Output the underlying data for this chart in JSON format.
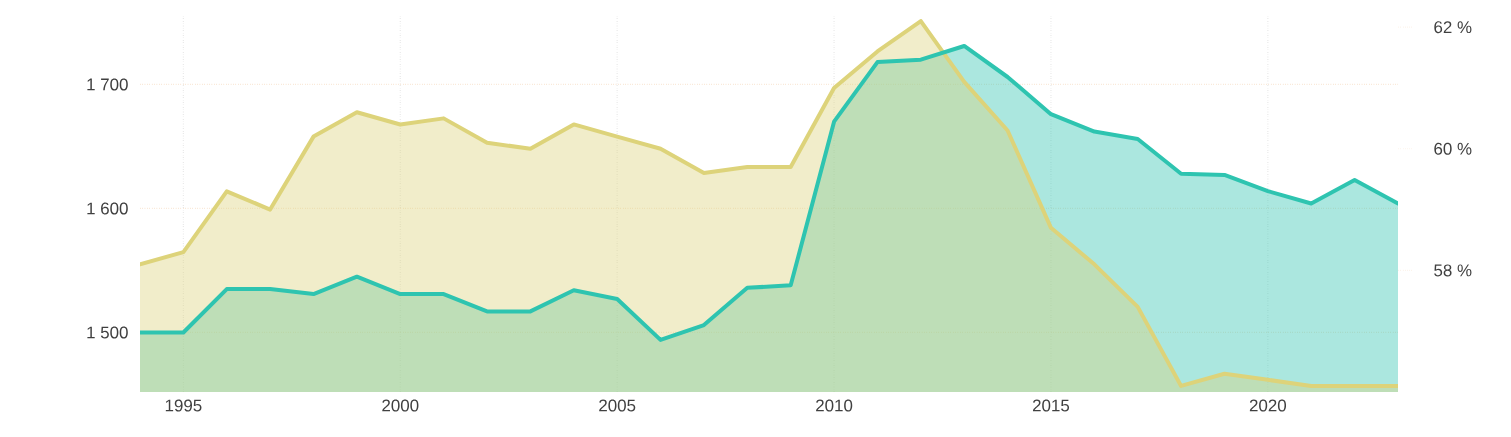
{
  "chart_data": {
    "type": "area",
    "x": [
      1994,
      1995,
      1996,
      1997,
      1998,
      1999,
      2000,
      2001,
      2002,
      2003,
      2004,
      2005,
      2006,
      2007,
      2008,
      2009,
      2010,
      2011,
      2012,
      2013,
      2014,
      2015,
      2016,
      2017,
      2018,
      2019,
      2020,
      2021,
      2022,
      2023
    ],
    "xlim": [
      1994,
      2023
    ],
    "xticks": [
      1995,
      2000,
      2005,
      2010,
      2015,
      2020
    ],
    "ylim": [
      1452,
      1756
    ],
    "yticks": [
      {
        "value": 1500,
        "label": "1 500"
      },
      {
        "value": 1600,
        "label": "1 600"
      },
      {
        "value": 1700,
        "label": "1 700"
      }
    ],
    "y2lim": [
      56,
      62.2
    ],
    "y2ticks": [
      {
        "value": 58,
        "label": "58 %"
      },
      {
        "value": 60,
        "label": "60 %"
      },
      {
        "value": 62,
        "label": "62 %"
      }
    ],
    "grid": true,
    "series": [
      {
        "color": "#2ec4b0",
        "values": [
          1500,
          1500,
          1535,
          1535,
          1531,
          1545,
          1531,
          1531,
          1517,
          1517,
          1534,
          1527,
          1494,
          1506,
          1536,
          1538,
          1670,
          1718,
          1720,
          1731,
          1706,
          1676,
          1662,
          1656,
          1628,
          1627,
          1614,
          1604,
          1623,
          1604
        ]
      },
      {
        "color": "#ddd37a",
        "axis": "y2",
        "values": [
          58.1,
          58.3,
          59.3,
          59.0,
          60.2,
          60.6,
          60.4,
          60.5,
          60.1,
          60.0,
          60.4,
          60.2,
          60.0,
          59.6,
          59.7,
          59.7,
          61.0,
          61.6,
          62.1,
          61.1,
          60.3,
          58.7,
          58.1,
          57.4,
          56.1,
          56.3,
          56.2,
          56.1,
          56.1,
          56.1
        ]
      }
    ]
  }
}
